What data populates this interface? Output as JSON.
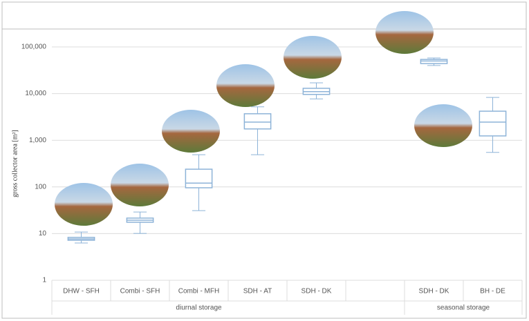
{
  "chart_data": {
    "type": "box",
    "y_label": "gross collector area [m²]",
    "categories": [
      "DHW - SFH",
      "Combi - SFH",
      "Combi - MFH",
      "SDH - AT",
      "SDH - DK",
      null,
      "SDH - DK",
      "BH - DE"
    ],
    "group_labels": [
      "diurnal storage",
      "seasonal storage"
    ],
    "min": [
      6.3,
      10.1,
      31,
      490,
      7700,
      null,
      40000,
      550
    ],
    "q1": [
      7.2,
      17.5,
      96,
      1750,
      9600,
      null,
      44000,
      1240
    ],
    "median": [
      7.7,
      19.4,
      121,
      2450,
      11000,
      null,
      50000,
      2450
    ],
    "q3": [
      8.3,
      21.5,
      240,
      3700,
      13000,
      null,
      54000,
      4200
    ],
    "max": [
      10.8,
      29,
      490,
      5200,
      17000,
      null,
      58000,
      8300
    ],
    "color": "#8db3d8",
    "log_scale": true,
    "grid": true,
    "ylim": [
      1,
      100000
    ],
    "yticks": [
      1,
      10,
      100,
      {
        "value": 1000,
        "label": "1,000"
      },
      {
        "value": 10000,
        "label": "10,000"
      },
      {
        "value": 100000,
        "label": "100,000"
      }
    ]
  }
}
